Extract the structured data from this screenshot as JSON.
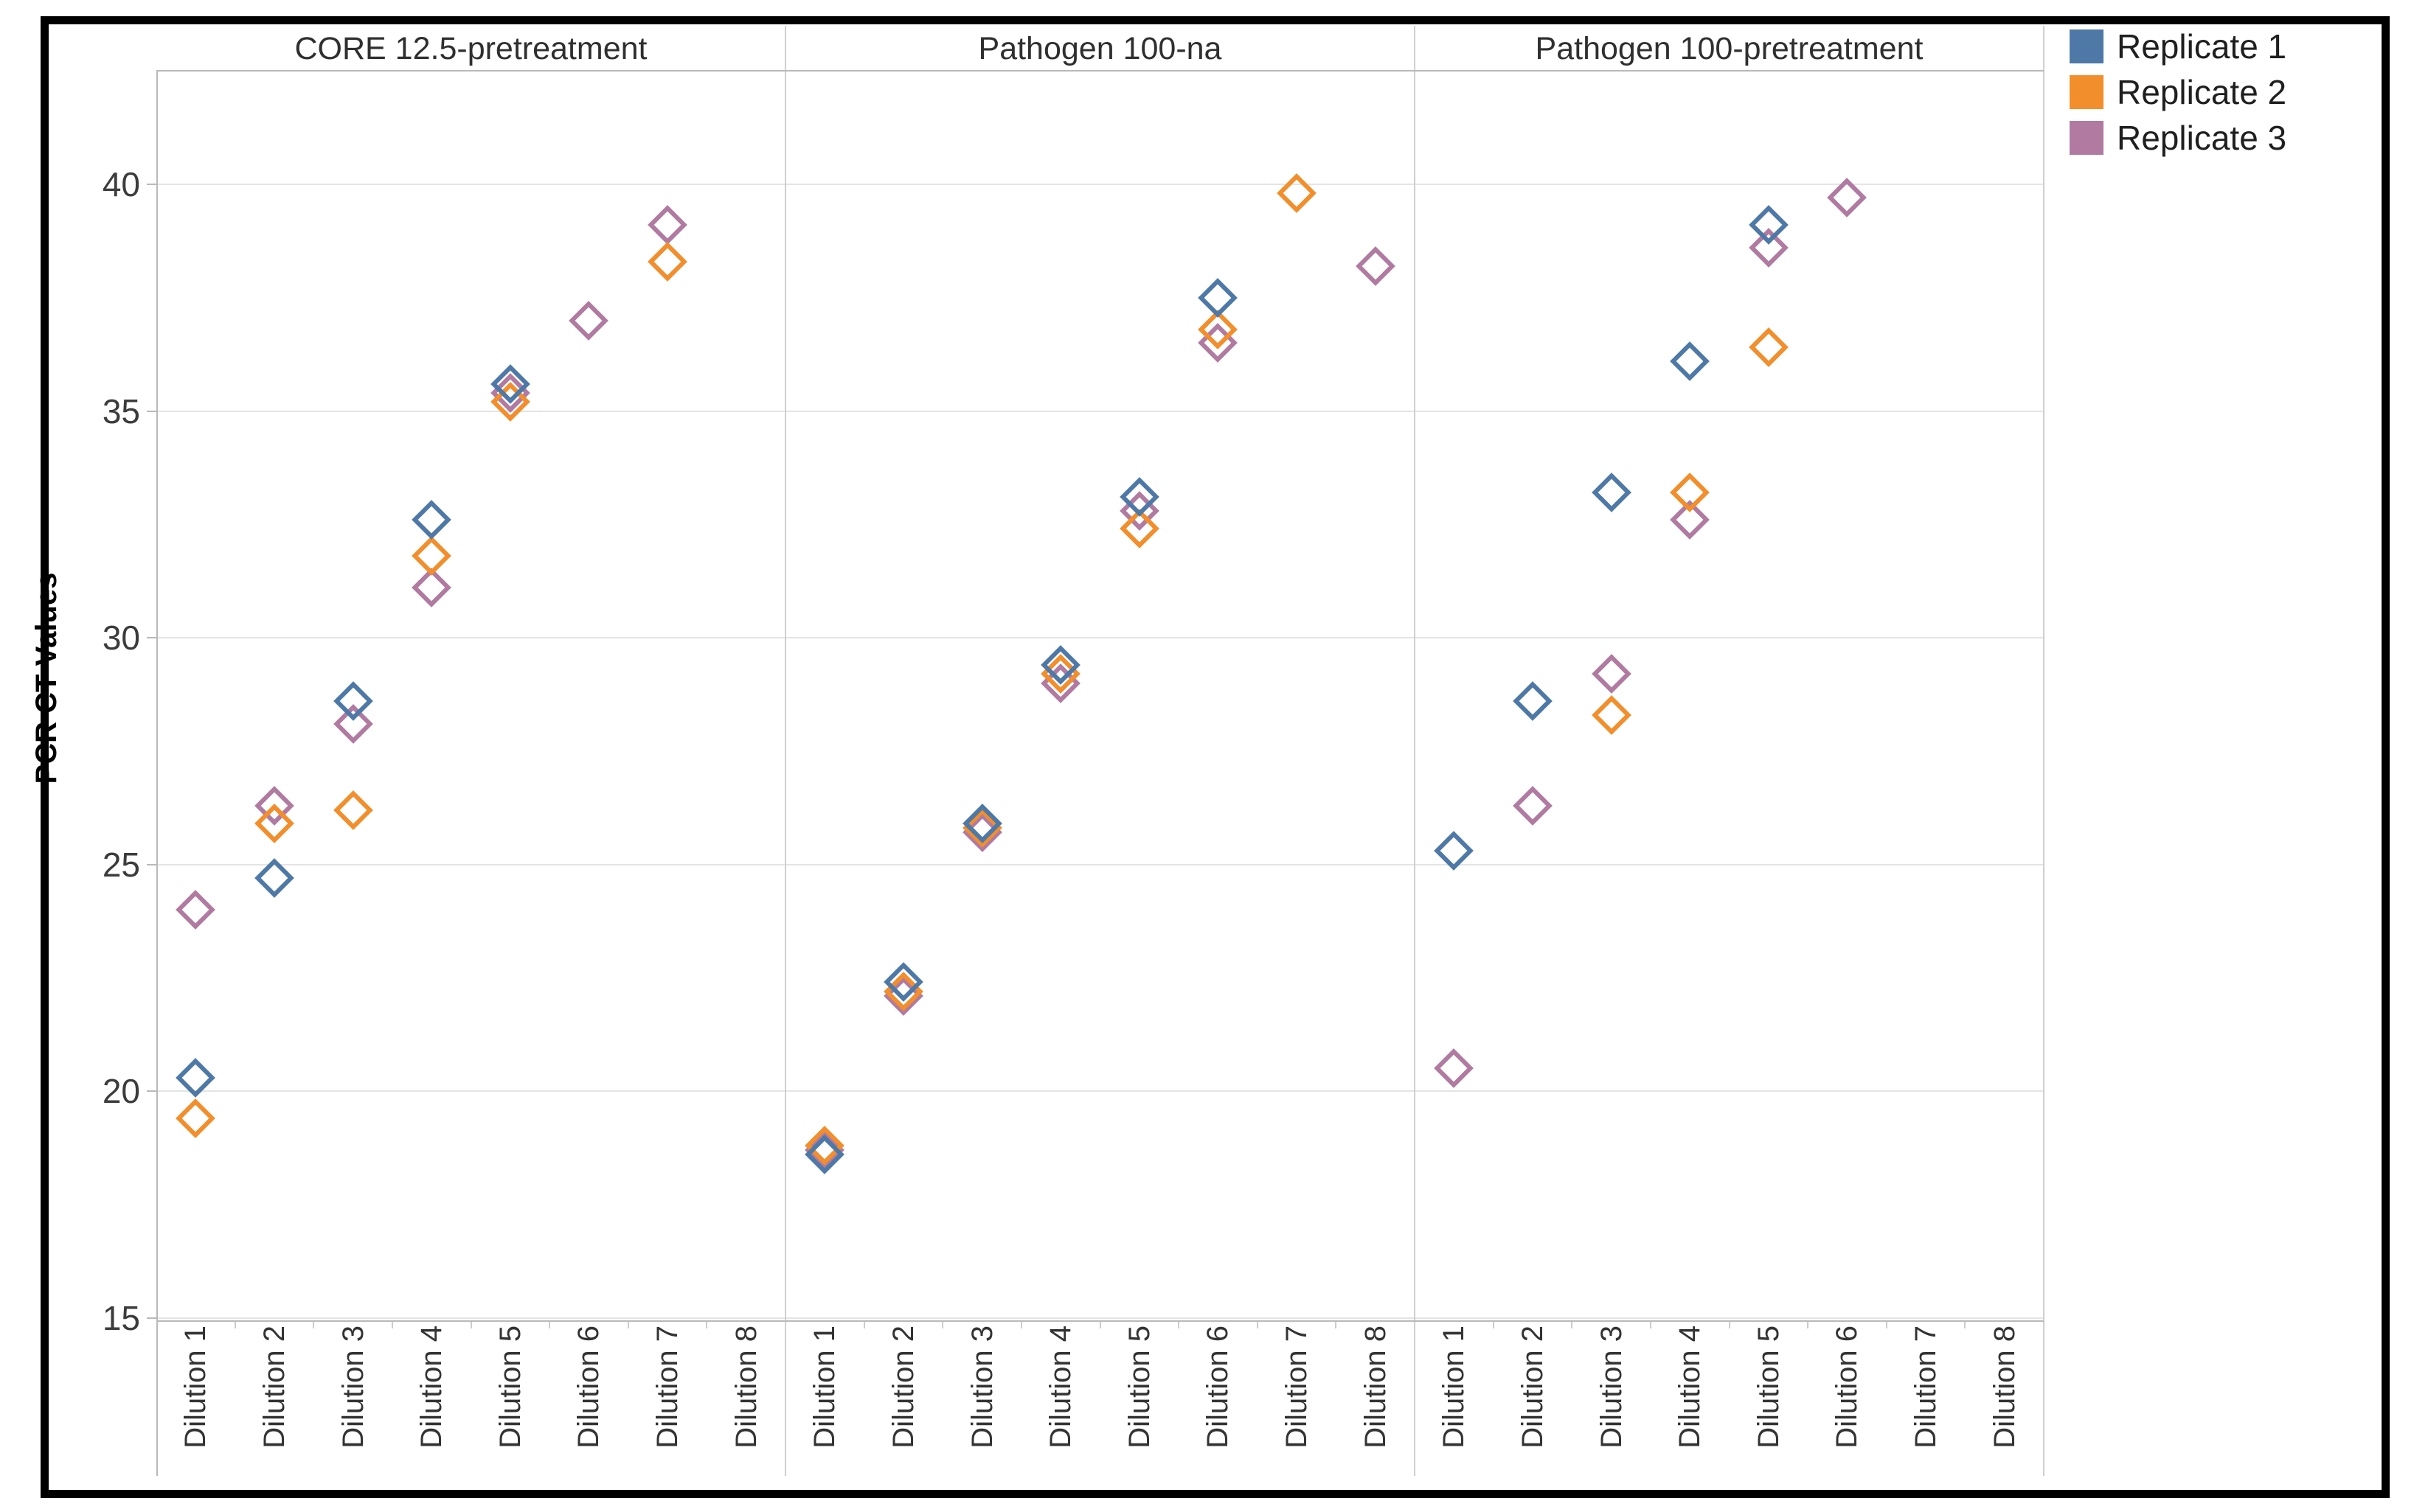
{
  "window": {
    "background_color": "#ffffff",
    "frame_color": "#000000"
  },
  "chart_data": {
    "type": "scatter",
    "title": "",
    "ylabel": "PCR CT Values",
    "xlabel": "",
    "ylim": [
      15,
      42.5
    ],
    "y_ticks": [
      15,
      20,
      25,
      30,
      35,
      40
    ],
    "grid": true,
    "marker": "open-diamond",
    "legend_position": "top-right",
    "categories": [
      "Dilution 1",
      "Dilution 2",
      "Dilution 3",
      "Dilution 4",
      "Dilution 5",
      "Dilution 6",
      "Dilution 7",
      "Dilution 8"
    ],
    "legend": [
      {
        "label": "Replicate 1",
        "color": "#4e79a7"
      },
      {
        "label": "Replicate 2",
        "color": "#f28e2b"
      },
      {
        "label": "Replicate 3",
        "color": "#b07aa1"
      }
    ],
    "panels": [
      {
        "title": "CORE 12.5-pretreatment",
        "series": [
          {
            "name": "Replicate 1",
            "color": "#4e79a7",
            "points": [
              [
                1,
                20.3
              ],
              [
                2,
                24.7
              ],
              [
                3,
                28.6
              ],
              [
                4,
                32.6
              ],
              [
                5,
                35.6
              ]
            ]
          },
          {
            "name": "Replicate 2",
            "color": "#f28e2b",
            "points": [
              [
                1,
                19.4
              ],
              [
                2,
                25.9
              ],
              [
                3,
                26.2
              ],
              [
                4,
                31.8
              ],
              [
                5,
                35.2
              ],
              [
                7,
                38.3
              ]
            ]
          },
          {
            "name": "Replicate 3",
            "color": "#b07aa1",
            "points": [
              [
                1,
                24.0
              ],
              [
                2,
                26.3
              ],
              [
                3,
                28.1
              ],
              [
                4,
                31.1
              ],
              [
                5,
                35.4
              ],
              [
                6,
                37.0
              ],
              [
                7,
                39.1
              ]
            ]
          }
        ]
      },
      {
        "title": "Pathogen 100-na",
        "series": [
          {
            "name": "Replicate 1",
            "color": "#4e79a7",
            "points": [
              [
                1,
                18.6
              ],
              [
                2,
                22.4
              ],
              [
                3,
                25.9
              ],
              [
                4,
                29.4
              ],
              [
                5,
                33.1
              ],
              [
                6,
                37.5
              ]
            ]
          },
          {
            "name": "Replicate 2",
            "color": "#f28e2b",
            "points": [
              [
                1,
                18.8
              ],
              [
                2,
                22.2
              ],
              [
                3,
                25.8
              ],
              [
                4,
                29.2
              ],
              [
                5,
                32.4
              ],
              [
                6,
                36.8
              ],
              [
                7,
                39.8
              ]
            ]
          },
          {
            "name": "Replicate 3",
            "color": "#b07aa1",
            "points": [
              [
                1,
                18.7
              ],
              [
                2,
                22.1
              ],
              [
                3,
                25.7
              ],
              [
                4,
                29.0
              ],
              [
                5,
                32.8
              ],
              [
                6,
                36.5
              ],
              [
                8,
                38.2
              ]
            ]
          }
        ]
      },
      {
        "title": "Pathogen 100-pretreatment",
        "series": [
          {
            "name": "Replicate 1",
            "color": "#4e79a7",
            "points": [
              [
                1,
                25.3
              ],
              [
                2,
                28.6
              ],
              [
                3,
                33.2
              ],
              [
                4,
                36.1
              ],
              [
                5,
                39.1
              ]
            ]
          },
          {
            "name": "Replicate 2",
            "color": "#f28e2b",
            "points": [
              [
                3,
                28.3
              ],
              [
                4,
                33.2
              ],
              [
                5,
                36.4
              ]
            ]
          },
          {
            "name": "Replicate 3",
            "color": "#b07aa1",
            "points": [
              [
                1,
                20.5
              ],
              [
                2,
                26.3
              ],
              [
                3,
                29.2
              ],
              [
                4,
                32.6
              ],
              [
                5,
                38.6
              ],
              [
                6,
                39.7
              ]
            ]
          }
        ]
      }
    ]
  }
}
